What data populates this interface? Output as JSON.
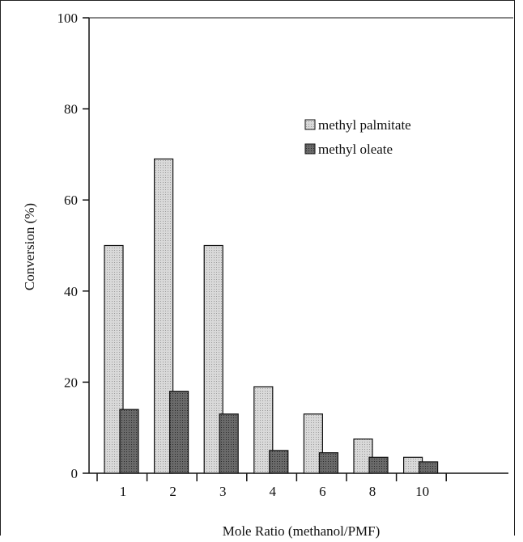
{
  "chart_data": {
    "type": "bar",
    "title": "",
    "xlabel": "Mole Ratio (methanol/PMF)",
    "ylabel": "Conversion (%)",
    "ylim": [
      0,
      100
    ],
    "yticks": [
      0,
      20,
      40,
      60,
      80,
      100
    ],
    "categories": [
      "1",
      "2",
      "3",
      "4",
      "6",
      "8",
      "10"
    ],
    "series": [
      {
        "name": "methyl palmitate",
        "values": [
          50,
          69,
          50,
          19,
          13,
          7.5,
          3.5
        ],
        "color": "#cfcfcf"
      },
      {
        "name": "methyl oleate",
        "values": [
          14,
          18,
          13,
          5,
          4.5,
          3.5,
          2.5
        ],
        "color": "#5f5f5f"
      }
    ],
    "legend_position": "top-right",
    "grid": false
  }
}
